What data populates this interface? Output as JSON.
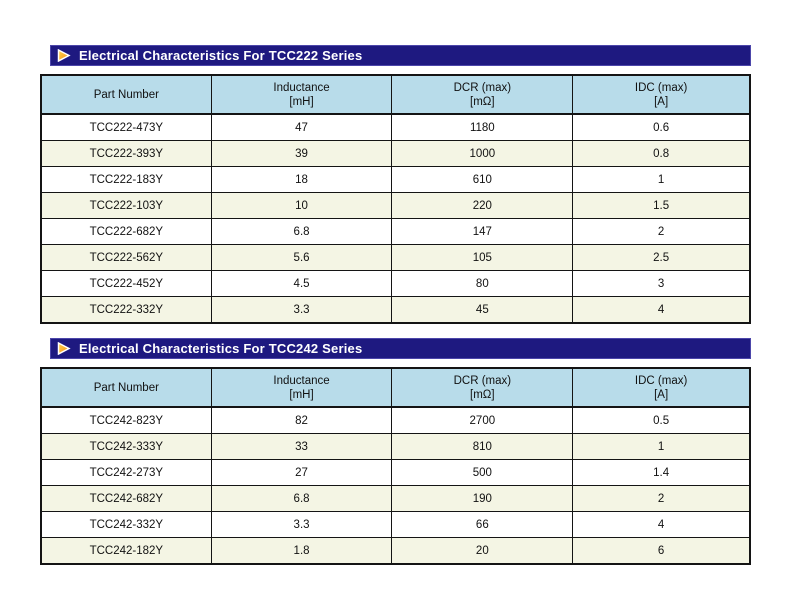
{
  "colors": {
    "page_bg": "#ffffff",
    "bar_bg": "#1e1980",
    "bar_edge": "#4c46aa",
    "bar_text": "#ffffff",
    "header_bg": "#b8dcea",
    "alt_row_bg": "#f4f5e4",
    "table_line": "#141414",
    "triangle_fill_top": "#ffd24a",
    "triangle_fill_bottom": "#f6921e",
    "triangle_stroke": "#ffffff"
  },
  "icons": {
    "section_marker": "triangle-right-icon"
  },
  "sections": [
    {
      "title": "Electrical Characteristics For TCC222 Series",
      "columns": [
        {
          "line1": "Part Number",
          "line2": ""
        },
        {
          "line1": "Inductance",
          "line2": "[mH]"
        },
        {
          "line1": "DCR (max)",
          "line2": "[mΩ]"
        },
        {
          "line1": "IDC (max)",
          "line2": "[A]"
        }
      ],
      "rows": [
        [
          "TCC222-473Y",
          "47",
          "1180",
          "0.6"
        ],
        [
          "TCC222-393Y",
          "39",
          "1000",
          "0.8"
        ],
        [
          "TCC222-183Y",
          "18",
          "610",
          "1"
        ],
        [
          "TCC222-103Y",
          "10",
          "220",
          "1.5"
        ],
        [
          "TCC222-682Y",
          "6.8",
          "147",
          "2"
        ],
        [
          "TCC222-562Y",
          "5.6",
          "105",
          "2.5"
        ],
        [
          "TCC222-452Y",
          "4.5",
          "80",
          "3"
        ],
        [
          "TCC222-332Y",
          "3.3",
          "45",
          "4"
        ]
      ]
    },
    {
      "title": "Electrical Characteristics For TCC242 Series",
      "columns": [
        {
          "line1": "Part Number",
          "line2": ""
        },
        {
          "line1": "Inductance",
          "line2": "[mH]"
        },
        {
          "line1": "DCR (max)",
          "line2": "[mΩ]"
        },
        {
          "line1": "IDC (max)",
          "line2": "[A]"
        }
      ],
      "rows": [
        [
          "TCC242-823Y",
          "82",
          "2700",
          "0.5"
        ],
        [
          "TCC242-333Y",
          "33",
          "810",
          "1"
        ],
        [
          "TCC242-273Y",
          "27",
          "500",
          "1.4"
        ],
        [
          "TCC242-682Y",
          "6.8",
          "190",
          "2"
        ],
        [
          "TCC242-332Y",
          "3.3",
          "66",
          "4"
        ],
        [
          "TCC242-182Y",
          "1.8",
          "20",
          "6"
        ]
      ]
    }
  ]
}
